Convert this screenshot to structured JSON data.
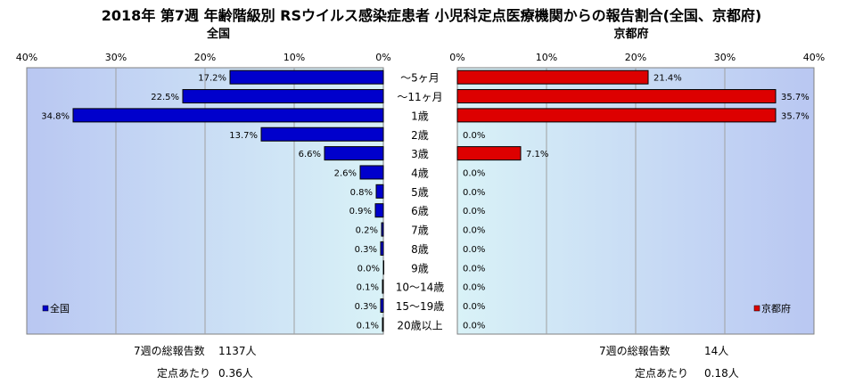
{
  "title": "2018年 第7週 年齢階級別 RSウイルス感染症患者 小児科定点医療機関からの報告割合(全国、京都府)",
  "colors": {
    "national": "#0000cc",
    "kyoto": "#dd0000",
    "plot_bg": "#ccddf7"
  },
  "chart_data": [
    {
      "type": "bar",
      "title": "全国",
      "legend": "全国",
      "legend_position": "bottom-left",
      "orientation": "horizontal-reversed",
      "xlim": [
        0,
        40
      ],
      "ticks": [
        "40%",
        "30%",
        "20%",
        "10%",
        "0%"
      ],
      "categories": [
        "～5ヶ月",
        "～11ヶ月",
        "1歳",
        "2歳",
        "3歳",
        "4歳",
        "5歳",
        "6歳",
        "7歳",
        "8歳",
        "9歳",
        "10～14歳",
        "15～19歳",
        "20歳以上"
      ],
      "values": [
        17.2,
        22.5,
        34.8,
        13.7,
        6.6,
        2.6,
        0.8,
        0.9,
        0.2,
        0.3,
        0.0,
        0.1,
        0.3,
        0.1
      ],
      "labels": [
        "17.2%",
        "22.5%",
        "34.8%",
        "13.7%",
        "6.6%",
        "2.6%",
        "0.8%",
        "0.9%",
        "0.2%",
        "0.3%",
        "0.0%",
        "0.1%",
        "0.3%",
        "0.1%"
      ]
    },
    {
      "type": "bar",
      "title": "京都府",
      "legend": "京都府",
      "legend_position": "bottom-right",
      "orientation": "horizontal",
      "xlim": [
        0,
        40
      ],
      "ticks": [
        "0%",
        "10%",
        "20%",
        "30%",
        "40%"
      ],
      "categories": [
        "～5ヶ月",
        "～11ヶ月",
        "1歳",
        "2歳",
        "3歳",
        "4歳",
        "5歳",
        "6歳",
        "7歳",
        "8歳",
        "9歳",
        "10～14歳",
        "15～19歳",
        "20歳以上"
      ],
      "values": [
        21.4,
        35.7,
        35.7,
        0.0,
        7.1,
        0.0,
        0.0,
        0.0,
        0.0,
        0.0,
        0.0,
        0.0,
        0.0,
        0.0
      ],
      "labels": [
        "21.4%",
        "35.7%",
        "35.7%",
        "0.0%",
        "7.1%",
        "0.0%",
        "0.0%",
        "0.0%",
        "0.0%",
        "0.0%",
        "0.0%",
        "0.0%",
        "0.0%",
        "0.0%"
      ]
    }
  ],
  "footer": {
    "national": {
      "total_label": "7週の総報告数",
      "total_value": "1137人",
      "per_label": "定点あたり",
      "per_value": "0.36人"
    },
    "kyoto": {
      "total_label": "7週の総報告数",
      "total_value": "14人",
      "per_label": "定点あたり",
      "per_value": "0.18人"
    }
  }
}
